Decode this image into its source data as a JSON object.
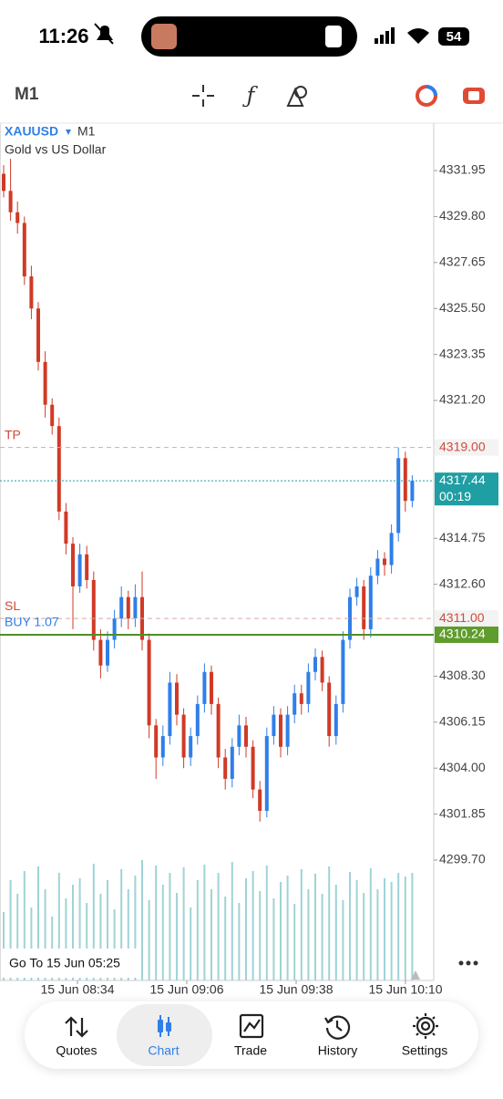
{
  "status_bar": {
    "time": "11:26",
    "battery": "54"
  },
  "toolbar": {
    "timeframe": "M1"
  },
  "chart_data": {
    "type": "candlestick",
    "symbol": "XAUUSD",
    "timeframe": "M1",
    "description": "Gold vs US Dollar",
    "x_labels": [
      "15 Jun 08:34",
      "15 Jun 09:06",
      "15 Jun 09:38",
      "15 Jun 10:10"
    ],
    "open": [
      4331.8,
      4331.0,
      4330.0,
      4329.5,
      4327.0,
      4325.5,
      4323.0,
      4321.0,
      4320.0,
      4316.0,
      4314.5,
      4312.5,
      4314.0,
      4312.8,
      4310.0,
      4308.8,
      4310.0,
      4311.0,
      4312.0,
      4311.0,
      4312.0,
      4310.0,
      4306.0,
      4304.5,
      4305.5,
      4308.0,
      4306.5,
      4304.5,
      4305.5,
      4307.0,
      4308.5,
      4307.0,
      4304.5,
      4303.5,
      4305.0,
      4306.0,
      4305.0,
      4303.0,
      4302.0,
      4305.5,
      4306.5,
      4305.0,
      4306.5,
      4307.5,
      4307.0,
      4308.5,
      4309.2,
      4308.0,
      4305.5,
      4307.0,
      4310.0,
      4312.0,
      4312.5,
      4310.5,
      4313.0,
      4313.8,
      4313.5,
      4315.0,
      4318.5,
      4316.5
    ],
    "high": [
      4332.2,
      4332.5,
      4330.5,
      4329.8,
      4327.5,
      4325.8,
      4323.5,
      4321.3,
      4320.4,
      4316.4,
      4314.8,
      4314.5,
      4314.4,
      4313.2,
      4310.5,
      4310.4,
      4311.4,
      4312.5,
      4312.3,
      4312.6,
      4313.2,
      4310.3,
      4306.3,
      4306.0,
      4308.5,
      4308.4,
      4306.8,
      4305.9,
      4307.4,
      4308.9,
      4308.8,
      4307.3,
      4304.9,
      4305.4,
      4306.5,
      4306.4,
      4305.3,
      4303.4,
      4305.9,
      4306.9,
      4306.8,
      4306.9,
      4307.9,
      4307.9,
      4308.9,
      4309.6,
      4309.5,
      4308.3,
      4307.4,
      4310.4,
      4312.4,
      4312.9,
      4312.8,
      4313.4,
      4314.2,
      4314.1,
      4315.4,
      4319.0,
      4318.8,
      4317.7
    ],
    "low": [
      4330.7,
      4329.6,
      4329.0,
      4326.6,
      4325.0,
      4322.6,
      4320.4,
      4319.6,
      4315.6,
      4314.0,
      4310.5,
      4312.2,
      4312.4,
      4309.5,
      4308.2,
      4308.5,
      4309.6,
      4310.6,
      4310.5,
      4310.6,
      4309.5,
      4305.4,
      4303.5,
      4304.1,
      4305.1,
      4306.0,
      4304.0,
      4304.1,
      4305.1,
      4306.6,
      4306.5,
      4304.0,
      4303.0,
      4303.1,
      4304.6,
      4304.5,
      4302.6,
      4301.5,
      4301.7,
      4305.1,
      4304.5,
      4304.6,
      4306.1,
      4306.5,
      4306.6,
      4308.1,
      4307.6,
      4305.0,
      4305.1,
      4306.6,
      4309.6,
      4311.6,
      4310.0,
      4310.1,
      4312.6,
      4313.0,
      4313.1,
      4314.6,
      4316.0,
      4316.2
    ],
    "close": [
      4331.0,
      4330.0,
      4329.5,
      4327.0,
      4325.5,
      4323.0,
      4321.0,
      4320.0,
      4316.0,
      4314.5,
      4312.5,
      4314.0,
      4312.8,
      4310.0,
      4308.8,
      4310.0,
      4311.0,
      4312.0,
      4311.0,
      4312.0,
      4310.0,
      4306.0,
      4304.5,
      4305.5,
      4308.0,
      4306.5,
      4304.5,
      4305.5,
      4307.0,
      4308.5,
      4307.0,
      4304.5,
      4303.5,
      4305.0,
      4306.0,
      4305.0,
      4303.0,
      4302.0,
      4305.5,
      4306.5,
      4305.0,
      4306.5,
      4307.5,
      4307.0,
      4308.5,
      4309.2,
      4308.0,
      4305.5,
      4307.0,
      4310.0,
      4312.0,
      4312.5,
      4310.5,
      4313.0,
      4313.8,
      4313.5,
      4315.0,
      4318.5,
      4316.5,
      4317.44
    ],
    "volumes": [
      75,
      110,
      95,
      120,
      80,
      125,
      100,
      70,
      118,
      90,
      105,
      112,
      85,
      128,
      95,
      110,
      78,
      122,
      100,
      115,
      132,
      88,
      126,
      105,
      118,
      96,
      124,
      80,
      110,
      127,
      100,
      118,
      92,
      130,
      85,
      112,
      120,
      98,
      126,
      90,
      108,
      115,
      84,
      122,
      100,
      117,
      95,
      125,
      105,
      88,
      119,
      110,
      96,
      123,
      100,
      112,
      108,
      118,
      114,
      118
    ],
    "up_color": "#2f7fe8",
    "down_color": "#d03a26",
    "volume_color": "#9fd3d6",
    "ylim": [
      4294.07,
      4334.17
    ],
    "yticks": [
      4331.95,
      {
        "value": 4329.8,
        "label": "4329.80"
      },
      4327.65,
      {
        "value": 4325.5,
        "label": "4325.50"
      },
      4323.35,
      {
        "value": 4321.2,
        "label": "4321.20"
      },
      4314.75,
      {
        "value": 4312.6,
        "label": "4312.60"
      },
      {
        "value": 4308.3,
        "label": "4308.30"
      },
      4306.15,
      {
        "value": 4304,
        "label": "4304.00"
      },
      4301.85,
      {
        "value": 4299.7,
        "label": "4299.70"
      }
    ],
    "levels": [
      {
        "name": "TP",
        "value": 4319,
        "value_label": "4319.00",
        "line_color": "#d8a7a2",
        "name_color": "#d04a38",
        "box_fill": "#f3f3f3",
        "text_color": "#d04a38",
        "dash": "5 4"
      },
      {
        "value": 4317.44,
        "timer": "00:19",
        "line_color": "#1c9ea6",
        "box_fill": "#1f9ea3",
        "text_color": "#ffffff",
        "dash": "2 2"
      },
      {
        "name": "SL",
        "value": 4311,
        "value_label": "4311.00",
        "line_color": "#d8a7a2",
        "name_color": "#d04a38",
        "box_fill": "#f3f3f3",
        "text_color": "#d04a38",
        "dash": "5 4"
      },
      {
        "name": "BUY 1.07",
        "value": 4310.24,
        "line_color": "#4f8f25",
        "name_color": "#2f7fe8",
        "box_fill": "#5e9c2c",
        "text_color": "#ffffff",
        "dash": "none"
      }
    ],
    "goto": "Go To 15 Jun 05:25"
  },
  "tab_bar": {
    "tabs": [
      "Quotes",
      "Chart",
      "Trade",
      "History",
      "Settings"
    ]
  }
}
